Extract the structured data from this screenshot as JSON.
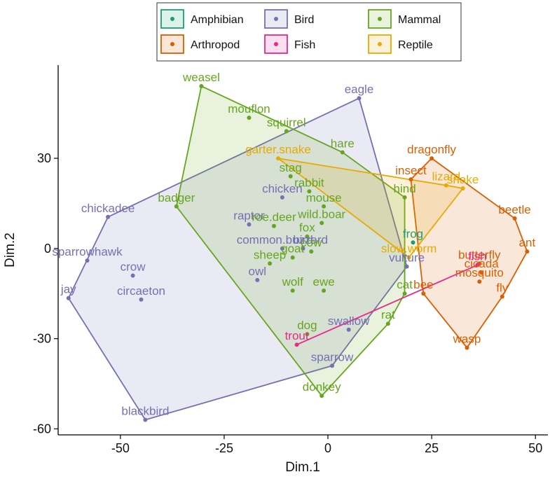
{
  "chart_data": {
    "type": "scatter",
    "title": "",
    "xlabel": "Dim.1",
    "ylabel": "Dim.2",
    "xlim": [
      -65,
      53
    ],
    "ylim": [
      -62,
      61
    ],
    "x_ticks": [
      -50,
      -25,
      0,
      25,
      50
    ],
    "x_tick_labels": [
      "-50",
      "-25",
      "0",
      "25",
      "50"
    ],
    "y_ticks": [
      -60,
      -30,
      0,
      30
    ],
    "y_tick_labels": [
      "-60",
      "-30",
      "0",
      "30"
    ],
    "grid": false,
    "legend_position": "top",
    "groups": [
      {
        "name": "Amphibian",
        "color": "#1B9E77"
      },
      {
        "name": "Arthropod",
        "color": "#D95F02"
      },
      {
        "name": "Bird",
        "color": "#7570B3"
      },
      {
        "name": "Fish",
        "color": "#E7298A"
      },
      {
        "name": "Mammal",
        "color": "#66A61E"
      },
      {
        "name": "Reptile",
        "color": "#E6AB02"
      }
    ],
    "points": [
      {
        "label": "frog",
        "group": "Amphibian",
        "x": 20.5,
        "y": 2
      },
      {
        "label": "dragonfly",
        "group": "Arthropod",
        "x": 25,
        "y": 30
      },
      {
        "label": "beetle",
        "group": "Arthropod",
        "x": 45,
        "y": 10
      },
      {
        "label": "ant",
        "group": "Arthropod",
        "x": 48,
        "y": -1
      },
      {
        "label": "butterfly",
        "group": "Arthropod",
        "x": 36.5,
        "y": -5
      },
      {
        "label": "cicada",
        "group": "Arthropod",
        "x": 37,
        "y": -8
      },
      {
        "label": "mosquito",
        "group": "Arthropod",
        "x": 36.5,
        "y": -11
      },
      {
        "label": "bee",
        "group": "Arthropod",
        "x": 23,
        "y": -15
      },
      {
        "label": "fly",
        "group": "Arthropod",
        "x": 42,
        "y": -16
      },
      {
        "label": "wasp",
        "group": "Arthropod",
        "x": 33.5,
        "y": -33
      },
      {
        "label": "insect",
        "group": "Arthropod",
        "x": 20,
        "y": 23
      },
      {
        "label": "eagle",
        "group": "Bird",
        "x": 7.5,
        "y": 50
      },
      {
        "label": "chicken",
        "group": "Bird",
        "x": -11,
        "y": 17
      },
      {
        "label": "raptor",
        "group": "Bird",
        "x": -19,
        "y": 8
      },
      {
        "label": "chickadee",
        "group": "Bird",
        "x": -53,
        "y": 10.5
      },
      {
        "label": "sparrowhawk",
        "group": "Bird",
        "x": -58,
        "y": -4
      },
      {
        "label": "common.buzzard",
        "group": "Bird",
        "x": -11,
        "y": 0
      },
      {
        "label": "bird",
        "group": "Bird",
        "x": -6,
        "y": 0
      },
      {
        "label": "jay",
        "group": "Bird",
        "x": -62.5,
        "y": -16.5
      },
      {
        "label": "crow",
        "group": "Bird",
        "x": -47,
        "y": -9
      },
      {
        "label": "circaeton",
        "group": "Bird",
        "x": -45,
        "y": -17
      },
      {
        "label": "owl",
        "group": "Bird",
        "x": -17,
        "y": -10.5
      },
      {
        "label": "vulture",
        "group": "Bird",
        "x": 19,
        "y": -6
      },
      {
        "label": "swallow",
        "group": "Bird",
        "x": 5,
        "y": -27
      },
      {
        "label": "sparrow",
        "group": "Bird",
        "x": 1,
        "y": -39
      },
      {
        "label": "blackbird",
        "group": "Bird",
        "x": -44,
        "y": -57
      },
      {
        "label": "fish",
        "group": "Fish",
        "x": 36,
        "y": -5.5
      },
      {
        "label": "trout",
        "group": "Fish",
        "x": -7.5,
        "y": -32
      },
      {
        "label": "weasel",
        "group": "Mammal",
        "x": -30.5,
        "y": 54
      },
      {
        "label": "mouflon",
        "group": "Mammal",
        "x": -19,
        "y": 43.5
      },
      {
        "label": "squirrel",
        "group": "Mammal",
        "x": -10,
        "y": 39
      },
      {
        "label": "hare",
        "group": "Mammal",
        "x": 3.5,
        "y": 32
      },
      {
        "label": "stag",
        "group": "Mammal",
        "x": -9,
        "y": 24
      },
      {
        "label": "rabbit",
        "group": "Mammal",
        "x": -4.5,
        "y": 19
      },
      {
        "label": "badger",
        "group": "Mammal",
        "x": -36.5,
        "y": 14
      },
      {
        "label": "roe.deer",
        "group": "Mammal",
        "x": -13,
        "y": 7.5
      },
      {
        "label": "mouse",
        "group": "Mammal",
        "x": -1,
        "y": 14
      },
      {
        "label": "fox",
        "group": "Mammal",
        "x": -5,
        "y": 4
      },
      {
        "label": "hind",
        "group": "Mammal",
        "x": 18.5,
        "y": 17
      },
      {
        "label": "wild.boar",
        "group": "Mammal",
        "x": -1.5,
        "y": 8.5
      },
      {
        "label": "sheep",
        "group": "Mammal",
        "x": -14,
        "y": -5
      },
      {
        "label": "goat",
        "group": "Mammal",
        "x": -8.5,
        "y": -3
      },
      {
        "label": "cow",
        "group": "Mammal",
        "x": -4,
        "y": -1
      },
      {
        "label": "wolf",
        "group": "Mammal",
        "x": -8.5,
        "y": -14
      },
      {
        "label": "ewe",
        "group": "Mammal",
        "x": -1,
        "y": -14
      },
      {
        "label": "cat",
        "group": "Mammal",
        "x": 18.5,
        "y": -15
      },
      {
        "label": "dog",
        "group": "Mammal",
        "x": -5,
        "y": -28.5
      },
      {
        "label": "rat",
        "group": "Mammal",
        "x": 14.5,
        "y": -25
      },
      {
        "label": "donkey",
        "group": "Mammal",
        "x": -1.5,
        "y": -49
      },
      {
        "label": "garter.snake",
        "group": "Reptile",
        "x": -12,
        "y": 30
      },
      {
        "label": "lizard",
        "group": "Reptile",
        "x": 28.5,
        "y": 21
      },
      {
        "label": "snake",
        "group": "Reptile",
        "x": 32.5,
        "y": 20
      },
      {
        "label": "slow.worm",
        "group": "Reptile",
        "x": 19.5,
        "y": -3
      }
    ]
  }
}
